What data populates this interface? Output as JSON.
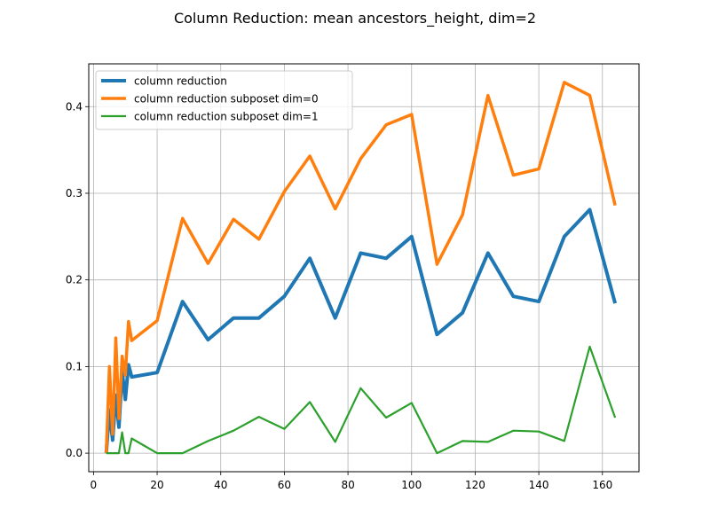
{
  "chart_data": {
    "type": "line",
    "title": "Column Reduction: mean ancestors_height, dim=2",
    "xlabel": "",
    "ylabel": "",
    "xlim": [
      -1.5,
      171.5
    ],
    "ylim": [
      -0.0214,
      0.4494
    ],
    "xticks": [
      0,
      20,
      40,
      60,
      80,
      100,
      120,
      140,
      160
    ],
    "yticks": [
      0.0,
      0.1,
      0.2,
      0.3,
      0.4
    ],
    "xtick_labels": [
      "0",
      "20",
      "40",
      "60",
      "80",
      "100",
      "120",
      "140",
      "160"
    ],
    "ytick_labels": [
      "0.0",
      "0.1",
      "0.2",
      "0.3",
      "0.4"
    ],
    "grid": true,
    "legend_position": "top-left",
    "series": [
      {
        "name": "column reduction",
        "color": "#1f77b4",
        "x": [
          4,
          5,
          6,
          7,
          8,
          9,
          10,
          11,
          12,
          20,
          28,
          36,
          44,
          52,
          60,
          68,
          76,
          84,
          92,
          100,
          108,
          116,
          124,
          132,
          140,
          148,
          156,
          164
        ],
        "y": [
          0.0,
          0.05,
          0.015,
          0.067,
          0.03,
          0.095,
          0.062,
          0.102,
          0.088,
          0.093,
          0.175,
          0.131,
          0.156,
          0.156,
          0.181,
          0.225,
          0.156,
          0.231,
          0.225,
          0.25,
          0.137,
          0.162,
          0.231,
          0.181,
          0.175,
          0.25,
          0.281,
          0.173
        ]
      },
      {
        "name": "column reduction subposet dim=0",
        "color": "#ff7f0e",
        "x": [
          4,
          5,
          6,
          7,
          8,
          9,
          10,
          11,
          12,
          20,
          28,
          36,
          44,
          52,
          60,
          68,
          76,
          84,
          92,
          100,
          108,
          116,
          124,
          132,
          140,
          148,
          156,
          164
        ],
        "y": [
          0.0,
          0.1,
          0.022,
          0.133,
          0.04,
          0.112,
          0.09,
          0.152,
          0.13,
          0.153,
          0.271,
          0.219,
          0.27,
          0.247,
          0.302,
          0.343,
          0.282,
          0.34,
          0.379,
          0.391,
          0.218,
          0.275,
          0.413,
          0.321,
          0.328,
          0.428,
          0.413,
          0.286
        ]
      },
      {
        "name": "column reduction subposet dim=1",
        "color": "#2ca02c",
        "x": [
          4,
          5,
          6,
          7,
          8,
          9,
          10,
          11,
          12,
          20,
          28,
          36,
          44,
          52,
          60,
          68,
          76,
          84,
          92,
          100,
          108,
          116,
          124,
          132,
          140,
          148,
          156,
          164
        ],
        "y": [
          0.0,
          0.0,
          0.0,
          0.0,
          0.0,
          0.024,
          0.0,
          0.0,
          0.017,
          0.0,
          0.0,
          0.014,
          0.026,
          0.042,
          0.028,
          0.059,
          0.013,
          0.075,
          0.041,
          0.058,
          0.0,
          0.014,
          0.013,
          0.026,
          0.025,
          0.014,
          0.123,
          0.041
        ]
      }
    ]
  }
}
